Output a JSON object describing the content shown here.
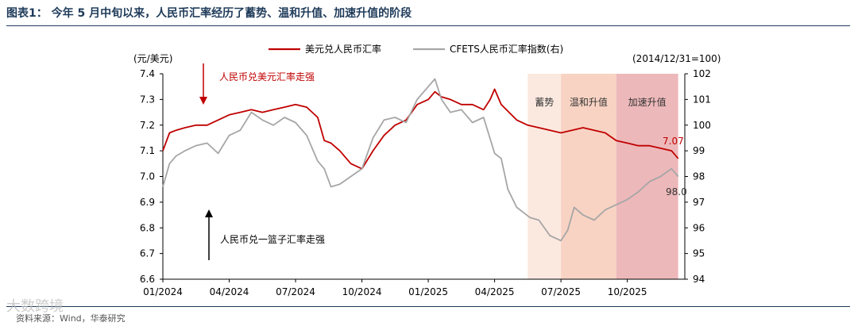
{
  "header": {
    "title": "图表1：  今年 5 月中旬以来，人民币汇率经历了蓄势、温和升值、加速升值的阶段"
  },
  "footer": {
    "source": "资料来源：Wind，华泰研究",
    "watermark": "大数跨境"
  },
  "chart_data": {
    "type": "line",
    "left_unit": "(元/美元)",
    "right_unit": "(2014/12/31=100)",
    "x_tick_labels": [
      "01/2024",
      "04/2024",
      "07/2024",
      "10/2024",
      "01/2025",
      "04/2025",
      "07/2025",
      "10/2025"
    ],
    "x_ticks_month_index": [
      0,
      3,
      6,
      9,
      12,
      15,
      18,
      21
    ],
    "x_range_months": [
      0,
      23.6
    ],
    "ylim_left": [
      6.6,
      7.4
    ],
    "yticks_left": [
      "6.6",
      "6.7",
      "6.8",
      "6.9",
      "7.0",
      "7.1",
      "7.2",
      "7.3",
      "7.4"
    ],
    "ylim_right": [
      94,
      102
    ],
    "yticks_right": [
      "94",
      "95",
      "96",
      "97",
      "98",
      "99",
      "100",
      "101",
      "102"
    ],
    "shaded_phases": [
      {
        "label": "蓄势",
        "start": 16.5,
        "end": 18.0,
        "color": "#fbe9e0"
      },
      {
        "label": "温和升值",
        "start": 18.0,
        "end": 20.5,
        "color": "#f8d3c3"
      },
      {
        "label": "加速升值",
        "start": 20.5,
        "end": 23.3,
        "color": "#edb8ba"
      }
    ],
    "annotations": {
      "top_text": "人民币兑美元汇率走强",
      "bottom_text": "人民币兑一篮子汇率走强",
      "end_label_usd": "7.07",
      "end_label_cfets": "98.0"
    },
    "series": [
      {
        "name": "美元兑人民币汇率",
        "axis": "left",
        "color": "#c00000",
        "x": [
          0,
          0.3,
          0.6,
          1,
          1.5,
          2,
          2.5,
          3,
          3.5,
          4,
          4.5,
          5,
          5.5,
          6,
          6.5,
          7,
          7.3,
          7.6,
          8,
          8.5,
          9,
          9.5,
          10,
          10.5,
          11,
          11.5,
          12,
          12.3,
          12.6,
          13,
          13.5,
          14,
          14.5,
          14.8,
          15,
          15.3,
          16,
          16.5,
          17,
          17.5,
          18,
          18.5,
          19,
          19.5,
          20,
          20.5,
          21,
          21.5,
          22,
          22.5,
          23,
          23.3
        ],
        "values": [
          7.1,
          7.17,
          7.18,
          7.19,
          7.2,
          7.2,
          7.22,
          7.24,
          7.25,
          7.26,
          7.25,
          7.26,
          7.27,
          7.28,
          7.27,
          7.23,
          7.14,
          7.13,
          7.1,
          7.05,
          7.03,
          7.1,
          7.16,
          7.2,
          7.22,
          7.28,
          7.3,
          7.33,
          7.31,
          7.3,
          7.28,
          7.28,
          7.26,
          7.3,
          7.34,
          7.28,
          7.22,
          7.2,
          7.19,
          7.18,
          7.17,
          7.18,
          7.19,
          7.18,
          7.17,
          7.14,
          7.13,
          7.12,
          7.12,
          7.11,
          7.1,
          7.07
        ]
      },
      {
        "name": "CFETS人民币汇率指数(右)",
        "axis": "right",
        "color": "#a6a6a6",
        "x": [
          0,
          0.3,
          0.6,
          1,
          1.5,
          2,
          2.5,
          3,
          3.5,
          4,
          4.5,
          5,
          5.5,
          6,
          6.5,
          7,
          7.3,
          7.6,
          8,
          8.5,
          9,
          9.5,
          10,
          10.5,
          11,
          11.5,
          12,
          12.3,
          12.6,
          13,
          13.5,
          14,
          14.5,
          15,
          15.3,
          15.6,
          16,
          16.3,
          16.6,
          17,
          17.5,
          18,
          18.3,
          18.6,
          19,
          19.5,
          20,
          20.5,
          21,
          21.5,
          22,
          22.5,
          23,
          23.3
        ],
        "values": [
          97.6,
          98.5,
          98.8,
          99.0,
          99.2,
          99.3,
          98.9,
          99.6,
          99.8,
          100.5,
          100.2,
          100.0,
          100.3,
          100.1,
          99.6,
          98.6,
          98.3,
          97.6,
          97.7,
          98.0,
          98.3,
          99.5,
          100.2,
          100.3,
          100.1,
          101.0,
          101.5,
          101.8,
          101.0,
          100.5,
          100.6,
          100.1,
          100.3,
          98.9,
          98.7,
          97.5,
          96.8,
          96.6,
          96.4,
          96.3,
          95.7,
          95.5,
          95.9,
          96.8,
          96.5,
          96.3,
          96.7,
          96.9,
          97.1,
          97.4,
          97.8,
          98.0,
          98.3,
          98.0
        ]
      }
    ]
  }
}
